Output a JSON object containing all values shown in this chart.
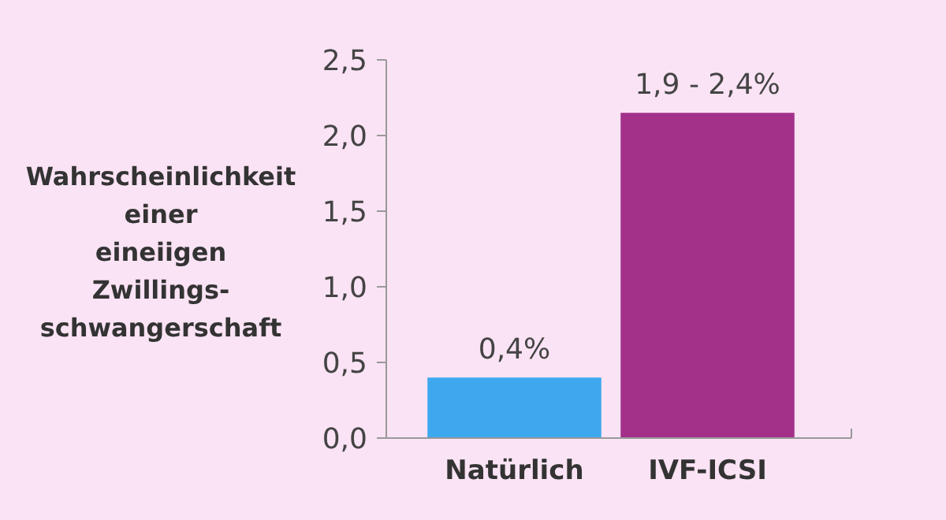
{
  "chart_data": {
    "type": "bar",
    "ylabel": "Wahrscheinlichkeit\neiner\neineiigen\nZwillings-\nschwangerschaft",
    "categories": [
      "Natürlich",
      "IVF-ICSI"
    ],
    "values": [
      0.4,
      2.15
    ],
    "colors": [
      "#3ea8ee",
      "#a3318a"
    ],
    "value_labels": [
      "0,4%",
      null
    ],
    "annotations": [
      {
        "text": "1,9 - 2,4%",
        "x": "IVF-ICSI",
        "y": 2.15
      }
    ],
    "ylim": [
      0,
      2.5
    ],
    "yticks": [
      {
        "value": 0,
        "label": "0,0"
      },
      {
        "value": 0.5,
        "label": "0,5"
      },
      {
        "value": 1,
        "label": "1,0"
      },
      {
        "value": 1.5,
        "label": "1,5"
      },
      {
        "value": 2,
        "label": "2,0"
      },
      {
        "value": 2.5,
        "label": "2,5"
      }
    ],
    "grid": false
  }
}
